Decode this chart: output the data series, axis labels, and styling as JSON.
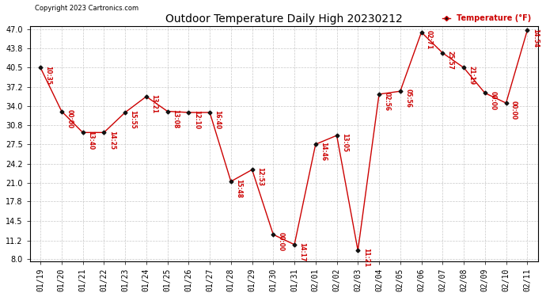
{
  "title": "Outdoor Temperature Daily High 20230212",
  "copyright": "Copyright 2023 Cartronics.com",
  "legend_label": "Temperature (°F)",
  "dates": [
    "01/19",
    "01/20",
    "01/21",
    "01/22",
    "01/23",
    "01/24",
    "01/25",
    "01/26",
    "01/27",
    "01/28",
    "01/29",
    "01/30",
    "01/31",
    "02/01",
    "02/02",
    "02/03",
    "02/04",
    "02/05",
    "02/06",
    "02/07",
    "02/08",
    "02/09",
    "02/10",
    "02/11"
  ],
  "values": [
    40.5,
    33.1,
    29.5,
    29.5,
    32.9,
    35.6,
    33.1,
    32.9,
    32.9,
    21.2,
    23.2,
    12.2,
    10.5,
    27.5,
    29.0,
    9.5,
    36.0,
    36.5,
    46.5,
    43.0,
    40.5,
    36.2,
    34.5,
    46.8
  ],
  "times": [
    "10:35",
    "00:00",
    "13:40",
    "14:25",
    "15:55",
    "13:21",
    "13:08",
    "12:10",
    "16:40",
    "15:48",
    "12:53",
    "00:00",
    "14:17",
    "14:46",
    "13:05",
    "11:21",
    "02:56",
    "05:56",
    "02:71",
    "25:57",
    "21:19",
    "00:00",
    "00:00",
    "14:54"
  ],
  "line_color": "#cc0000",
  "marker_color": "#111111",
  "bg_color": "#ffffff",
  "grid_color": "#bbbbbb",
  "text_color_red": "#cc0000",
  "text_color_black": "#000000",
  "ylim_min": 8.0,
  "ylim_max": 47.0,
  "yticks": [
    8.0,
    11.2,
    14.5,
    17.8,
    21.0,
    24.2,
    27.5,
    30.8,
    34.0,
    37.2,
    40.5,
    43.8,
    47.0
  ]
}
